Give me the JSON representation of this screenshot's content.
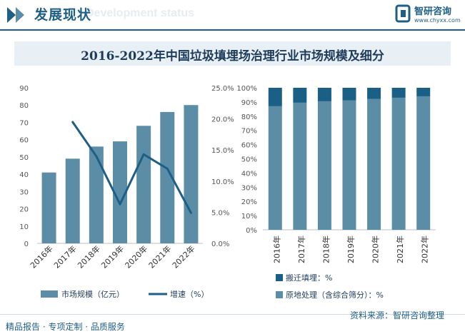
{
  "header": {
    "section_title": "发展现状",
    "section_subtitle": "Development status",
    "logo_name": "智研咨询",
    "logo_url": "www.chyxx.com"
  },
  "footer": {
    "left_text": "精品报告 · 专项定制 · 品质服务",
    "source_text": "资料来源：智研咨询整理"
  },
  "colors": {
    "bar": "#5b8ea6",
    "line": "#1e5f85",
    "dark_segment": "#1a5f86",
    "light_segment": "#5b8ea6"
  },
  "chart_data": [
    {
      "type": "bar",
      "title": "2016-2022年中国垃圾填埋场治理行业市场规模及细分",
      "categories": [
        "2016年",
        "2017年",
        "2018年",
        "2019年",
        "2020年",
        "2021年",
        "2022年"
      ],
      "series": [
        {
          "name": "市场规模（亿元）",
          "type": "bar",
          "axis": "left",
          "values": [
            41,
            49,
            56,
            59,
            68,
            76,
            80
          ]
        },
        {
          "name": "增速（%）",
          "type": "line",
          "axis": "right",
          "values": [
            null,
            19.5,
            14,
            6.3,
            14.3,
            12,
            4.9
          ]
        }
      ],
      "y_left": {
        "min": 0,
        "max": 90,
        "ticks": [
          "0",
          "10",
          "20",
          "30",
          "40",
          "50",
          "60",
          "70",
          "80",
          "90"
        ]
      },
      "y_right": {
        "min": 0,
        "max": 25,
        "ticks": [
          "0.0%",
          "5.0%",
          "10.0%",
          "15.0%",
          "20.0%",
          "25.0%"
        ]
      },
      "legend_position": "bottom",
      "grid": false
    },
    {
      "type": "bar",
      "stacked": true,
      "categories": [
        "2016年",
        "2017年",
        "2018年",
        "2019年",
        "2020年",
        "2021年",
        "2022年"
      ],
      "series": [
        {
          "name": "原地处理（含综合筛分）：%",
          "values": [
            87,
            89.5,
            90.5,
            91.2,
            92.2,
            93,
            94
          ]
        },
        {
          "name": "搬迁填埋：%",
          "values": [
            13,
            10.5,
            9.5,
            8.8,
            7.8,
            7,
            6
          ]
        }
      ],
      "y_axis": {
        "min": 0,
        "max": 100,
        "ticks": [
          "0%",
          "10%",
          "20%",
          "30%",
          "40%",
          "50%",
          "60%",
          "70%",
          "80%",
          "90%",
          "100%"
        ]
      },
      "legend_position": "bottom",
      "grid": false
    }
  ]
}
